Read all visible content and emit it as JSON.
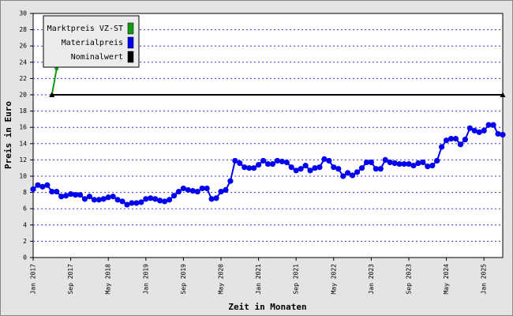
{
  "chart_data": {
    "type": "line",
    "xlabel": "Zeit in Monaten",
    "ylabel": "Preis in Euro",
    "categories": [
      "Jan 2017",
      null,
      null,
      null,
      null,
      null,
      null,
      null,
      "Sep 2017",
      null,
      null,
      null,
      null,
      null,
      null,
      null,
      "May 2018",
      null,
      null,
      null,
      null,
      null,
      null,
      null,
      "Jan 2019",
      null,
      null,
      null,
      null,
      null,
      null,
      null,
      "Sep 2019",
      null,
      null,
      null,
      null,
      null,
      null,
      null,
      "May 2020",
      null,
      null,
      null,
      null,
      null,
      null,
      null,
      "Jan 2021",
      null,
      null,
      null,
      null,
      null,
      null,
      null,
      "Sep 2021",
      null,
      null,
      null,
      null,
      null,
      null,
      null,
      "May 2022",
      null,
      null,
      null,
      null,
      null,
      null,
      null,
      "Jan 2023",
      null,
      null,
      null,
      null,
      null,
      null,
      null,
      "Sep 2023",
      null,
      null,
      null,
      null,
      null,
      null,
      null,
      "May 2024",
      null,
      null,
      null,
      null,
      null,
      null,
      null,
      "Jan 2025",
      null,
      null,
      null,
      null
    ],
    "series": [
      {
        "name": "Marktpreis VZ-ST",
        "color": "#119911",
        "values": [
          null,
          null,
          null,
          null,
          20.0,
          23.2,
          null,
          null,
          null,
          null,
          null,
          null,
          null,
          null,
          null,
          null,
          null,
          null,
          null,
          null,
          null,
          null,
          null,
          null,
          null,
          null,
          null,
          null,
          null,
          null,
          null,
          null,
          null,
          null,
          null,
          null,
          null,
          null,
          null,
          null,
          null,
          null,
          null,
          null,
          null,
          null,
          null,
          null,
          null,
          null,
          null,
          null,
          null,
          null,
          null,
          null,
          null,
          null,
          null,
          null,
          null,
          null,
          null,
          null,
          null,
          null,
          null,
          null,
          null,
          null,
          null,
          null,
          null,
          null,
          null,
          null,
          null,
          null,
          null,
          null,
          null,
          null,
          null,
          null,
          null,
          null,
          null,
          null,
          null,
          null,
          null,
          null,
          null,
          null,
          null,
          null,
          null,
          null,
          null,
          null,
          null
        ]
      },
      {
        "name": "Materialpreis",
        "color": "#0000ee",
        "values": [
          8.4,
          8.9,
          8.7,
          8.9,
          8.1,
          8.1,
          7.5,
          7.6,
          7.8,
          7.7,
          7.7,
          7.2,
          7.5,
          7.1,
          7.1,
          7.2,
          7.4,
          7.5,
          7.1,
          6.9,
          6.5,
          6.7,
          6.7,
          6.8,
          7.2,
          7.3,
          7.2,
          7.0,
          6.9,
          7.1,
          7.6,
          8.1,
          8.5,
          8.3,
          8.2,
          8.1,
          8.5,
          8.5,
          7.2,
          7.3,
          8.1,
          8.3,
          9.4,
          11.9,
          11.6,
          11.1,
          11.0,
          11.0,
          11.4,
          11.9,
          11.5,
          11.5,
          11.9,
          11.8,
          11.7,
          11.1,
          10.7,
          10.9,
          11.3,
          10.7,
          11.0,
          11.1,
          12.1,
          11.9,
          11.1,
          10.9,
          10.0,
          10.4,
          10.1,
          10.5,
          11.0,
          11.7,
          11.7,
          10.9,
          10.9,
          12.0,
          11.7,
          11.6,
          11.5,
          11.5,
          11.5,
          11.3,
          11.6,
          11.7,
          11.2,
          11.3,
          11.9,
          13.6,
          14.4,
          14.6,
          14.6,
          13.9,
          14.5,
          15.9,
          15.6,
          15.4,
          15.6,
          16.3,
          16.3,
          15.2,
          15.1
        ]
      },
      {
        "name": "Nominalwert",
        "color": "#000000",
        "values": [
          null,
          null,
          null,
          null,
          20,
          20,
          20,
          20,
          20,
          20,
          20,
          20,
          20,
          20,
          20,
          20,
          20,
          20,
          20,
          20,
          20,
          20,
          20,
          20,
          20,
          20,
          20,
          20,
          20,
          20,
          20,
          20,
          20,
          20,
          20,
          20,
          20,
          20,
          20,
          20,
          20,
          20,
          20,
          20,
          20,
          20,
          20,
          20,
          20,
          20,
          20,
          20,
          20,
          20,
          20,
          20,
          20,
          20,
          20,
          20,
          20,
          20,
          20,
          20,
          20,
          20,
          20,
          20,
          20,
          20,
          20,
          20,
          20,
          20,
          20,
          20,
          20,
          20,
          20,
          20,
          20,
          20,
          20,
          20,
          20,
          20,
          20,
          20,
          20,
          20,
          20,
          20,
          20,
          20,
          20,
          20,
          20,
          20,
          20,
          20,
          20
        ]
      }
    ],
    "ylim": [
      0,
      30
    ],
    "yticks": [
      0,
      2,
      4,
      6,
      8,
      10,
      12,
      14,
      16,
      18,
      20,
      22,
      24,
      26,
      28,
      30
    ],
    "grid": true,
    "legend": "top-left"
  }
}
